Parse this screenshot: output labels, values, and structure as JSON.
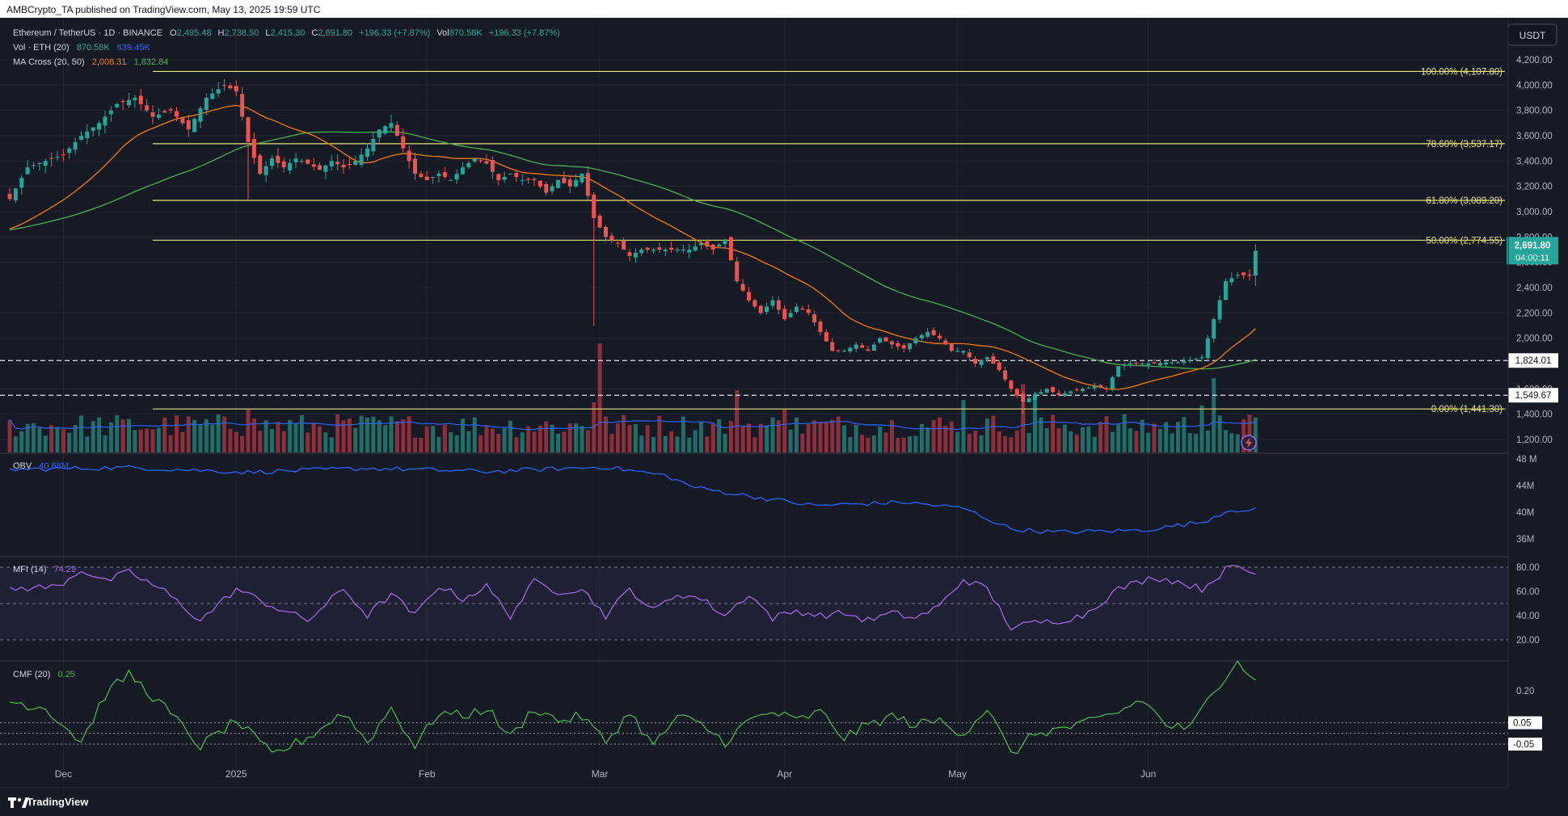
{
  "header": {
    "published": "AMBCrypto_TA published on TradingView.com, May 13, 2025 19:59 UTC",
    "symbol": "Ethereum / TetherUS · 1D · BINANCE",
    "o_label": "O",
    "o_value": "2,495.48",
    "h_label": "H",
    "h_value": "2,738.50",
    "l_label": "L",
    "l_value": "2,415.30",
    "c_label": "C",
    "c_value": "2,691.80",
    "change": "+196.33 (+7.87%)",
    "vol_label": "Vol",
    "vol_value": "870.58K",
    "vol_change": "+196.33 (+7.87%)",
    "vol_ind_label": "Vol · ETH (20)",
    "vol_ind_v1": "870.58K",
    "vol_ind_v2": "639.45K",
    "ma_label": "MA Cross (20, 50)",
    "ma_v1": "2,008.31",
    "ma_v2": "1,832.84",
    "currency": "USDT"
  },
  "price_badge": {
    "value": "2,691.80",
    "countdown": "04:00:11"
  },
  "colors": {
    "background": "#161a25",
    "up": "#26a69a",
    "down": "#ef5350",
    "ma20": "#f57c00",
    "ma50": "#4caf50",
    "fib": "#e8e27a",
    "obv": "#2962ff",
    "mfi": "#9c6ade",
    "cmf": "#4caf50",
    "volume_ma": "#2962ff"
  },
  "chart_data": {
    "type": "candlestick",
    "x_ticks": [
      "Dec",
      "2025",
      "Feb",
      "Mar",
      "Apr",
      "May",
      "Jun"
    ],
    "y_ticks": [
      "4,200.00",
      "4,000.00",
      "3,800.00",
      "3,600.00",
      "3,400.00",
      "3,200.00",
      "3,000.00",
      "2,800.00",
      "2,600.00",
      "2,400.00",
      "2,200.00",
      "2,000.00",
      "1,800.00",
      "1,600.00",
      "1,400.00",
      "1,200.00"
    ],
    "y_tick_values": [
      4200,
      4000,
      3800,
      3600,
      3400,
      3200,
      3000,
      2800,
      2600,
      2400,
      2200,
      2000,
      1800,
      1600,
      1400,
      1200
    ],
    "fib_levels": [
      {
        "label": "100.00% (4,107.80)",
        "price": 4107.8
      },
      {
        "label": "78.60% (3,537.17)",
        "price": 3537.17
      },
      {
        "label": "61.80% (3,089.20)",
        "price": 3089.2
      },
      {
        "label": "50.00% (2,774.55)",
        "price": 2774.55
      },
      {
        "label": "0.00% (1,441.30)",
        "price": 1441.3
      }
    ],
    "horizontal_levels": [
      {
        "label": "1,824.01",
        "price": 1824.01
      },
      {
        "label": "1,549.67",
        "price": 1549.67
      }
    ],
    "close_anchors": [
      [
        0,
        3100
      ],
      [
        3,
        3350
      ],
      [
        6,
        3400
      ],
      [
        9,
        3450
      ],
      [
        12,
        3600
      ],
      [
        15,
        3700
      ],
      [
        18,
        3850
      ],
      [
        21,
        3900
      ],
      [
        24,
        3750
      ],
      [
        27,
        3800
      ],
      [
        30,
        3650
      ],
      [
        33,
        3900
      ],
      [
        36,
        4000
      ],
      [
        38,
        3950
      ],
      [
        40,
        3550
      ],
      [
        42,
        3300
      ],
      [
        44,
        3420
      ],
      [
        46,
        3350
      ],
      [
        48,
        3420
      ],
      [
        50,
        3380
      ],
      [
        52,
        3330
      ],
      [
        54,
        3400
      ],
      [
        56,
        3350
      ],
      [
        58,
        3400
      ],
      [
        60,
        3500
      ],
      [
        62,
        3650
      ],
      [
        64,
        3700
      ],
      [
        66,
        3500
      ],
      [
        68,
        3300
      ],
      [
        70,
        3250
      ],
      [
        72,
        3300
      ],
      [
        74,
        3250
      ],
      [
        76,
        3350
      ],
      [
        78,
        3420
      ],
      [
        80,
        3380
      ],
      [
        82,
        3250
      ],
      [
        84,
        3300
      ],
      [
        86,
        3250
      ],
      [
        88,
        3250
      ],
      [
        90,
        3150
      ],
      [
        92,
        3250
      ],
      [
        94,
        3200
      ],
      [
        96,
        3300
      ],
      [
        98,
        2950
      ],
      [
        100,
        2800
      ],
      [
        102,
        2750
      ],
      [
        104,
        2650
      ],
      [
        106,
        2700
      ],
      [
        108,
        2700
      ],
      [
        110,
        2700
      ],
      [
        112,
        2700
      ],
      [
        114,
        2700
      ],
      [
        116,
        2750
      ],
      [
        118,
        2700
      ],
      [
        120,
        2780
      ],
      [
        122,
        2450
      ],
      [
        124,
        2300
      ],
      [
        126,
        2200
      ],
      [
        128,
        2300
      ],
      [
        130,
        2150
      ],
      [
        132,
        2250
      ],
      [
        134,
        2200
      ],
      [
        136,
        2050
      ],
      [
        138,
        1900
      ],
      [
        140,
        1900
      ],
      [
        142,
        1950
      ],
      [
        144,
        1900
      ],
      [
        146,
        2000
      ],
      [
        148,
        1950
      ],
      [
        150,
        1920
      ],
      [
        152,
        2000
      ],
      [
        154,
        2050
      ],
      [
        156,
        2000
      ],
      [
        158,
        1900
      ],
      [
        160,
        1900
      ],
      [
        162,
        1800
      ],
      [
        164,
        1850
      ],
      [
        166,
        1750
      ],
      [
        168,
        1600
      ],
      [
        170,
        1500
      ],
      [
        172,
        1550
      ],
      [
        174,
        1600
      ],
      [
        176,
        1550
      ],
      [
        178,
        1580
      ],
      [
        180,
        1600
      ],
      [
        182,
        1620
      ],
      [
        184,
        1600
      ],
      [
        186,
        1780
      ],
      [
        188,
        1800
      ],
      [
        190,
        1800
      ],
      [
        192,
        1800
      ],
      [
        194,
        1810
      ],
      [
        196,
        1810
      ],
      [
        198,
        1830
      ],
      [
        200,
        1850
      ],
      [
        202,
        2150
      ],
      [
        204,
        2450
      ],
      [
        206,
        2500
      ],
      [
        208,
        2495
      ],
      [
        209,
        2691.8
      ]
    ],
    "obv_axis": [
      "48 M",
      "44M",
      "40M",
      "36M"
    ],
    "obv_axis_values": [
      48,
      44,
      40,
      36
    ],
    "obv_label": "OBV",
    "obv_value": "40.68M",
    "obv_anchors": [
      [
        0,
        46.4
      ],
      [
        20,
        46.7
      ],
      [
        40,
        46.0
      ],
      [
        60,
        46.6
      ],
      [
        80,
        46.1
      ],
      [
        100,
        46.8
      ],
      [
        110,
        45.5
      ],
      [
        115,
        43.7
      ],
      [
        125,
        42.3
      ],
      [
        135,
        41.0
      ],
      [
        150,
        41.5
      ],
      [
        160,
        40.6
      ],
      [
        168,
        37.5
      ],
      [
        175,
        37.0
      ],
      [
        190,
        37.3
      ],
      [
        200,
        38.5
      ],
      [
        205,
        40.5
      ],
      [
        208,
        39.9
      ],
      [
        209,
        40.68
      ]
    ],
    "mfi_axis": [
      "80.00",
      "60.00",
      "40.00",
      "20.00"
    ],
    "mfi_axis_values": [
      80,
      60,
      40,
      20
    ],
    "mfi_label": "MFI (14)",
    "mfi_value": "74.29",
    "mfi_anchors": [
      [
        0,
        62
      ],
      [
        8,
        64
      ],
      [
        12,
        78
      ],
      [
        16,
        68
      ],
      [
        20,
        76
      ],
      [
        26,
        60
      ],
      [
        32,
        36
      ],
      [
        38,
        62
      ],
      [
        44,
        48
      ],
      [
        50,
        36
      ],
      [
        56,
        62
      ],
      [
        60,
        40
      ],
      [
        64,
        58
      ],
      [
        68,
        40
      ],
      [
        72,
        65
      ],
      [
        76,
        54
      ],
      [
        80,
        64
      ],
      [
        84,
        40
      ],
      [
        88,
        68
      ],
      [
        92,
        60
      ],
      [
        96,
        62
      ],
      [
        100,
        40
      ],
      [
        104,
        62
      ],
      [
        108,
        44
      ],
      [
        112,
        58
      ],
      [
        116,
        54
      ],
      [
        120,
        40
      ],
      [
        124,
        58
      ],
      [
        128,
        38
      ],
      [
        132,
        44
      ],
      [
        136,
        40
      ],
      [
        140,
        42
      ],
      [
        144,
        36
      ],
      [
        148,
        42
      ],
      [
        152,
        38
      ],
      [
        156,
        48
      ],
      [
        160,
        70
      ],
      [
        164,
        62
      ],
      [
        168,
        30
      ],
      [
        172,
        34
      ],
      [
        176,
        36
      ],
      [
        180,
        40
      ],
      [
        186,
        62
      ],
      [
        192,
        72
      ],
      [
        196,
        68
      ],
      [
        200,
        62
      ],
      [
        204,
        78
      ],
      [
        206,
        80
      ],
      [
        209,
        74.29
      ]
    ],
    "cmf_axis": [
      "0.20",
      "0.05",
      "-0.05"
    ],
    "cmf_axis_values": [
      0.2,
      0.05,
      -0.05
    ],
    "cmf_label": "CMF (20)",
    "cmf_value": "0.25",
    "cmf_anchors": [
      [
        0,
        0.15
      ],
      [
        6,
        0.12
      ],
      [
        12,
        -0.04
      ],
      [
        16,
        0.18
      ],
      [
        20,
        0.28
      ],
      [
        26,
        0.12
      ],
      [
        32,
        -0.06
      ],
      [
        38,
        0.06
      ],
      [
        44,
        -0.1
      ],
      [
        50,
        -0.02
      ],
      [
        56,
        0.1
      ],
      [
        60,
        -0.04
      ],
      [
        64,
        0.12
      ],
      [
        68,
        -0.06
      ],
      [
        72,
        0.1
      ],
      [
        76,
        0.08
      ],
      [
        80,
        0.12
      ],
      [
        84,
        -0.02
      ],
      [
        88,
        0.12
      ],
      [
        92,
        0.06
      ],
      [
        96,
        0.08
      ],
      [
        100,
        -0.04
      ],
      [
        104,
        0.1
      ],
      [
        108,
        -0.06
      ],
      [
        112,
        0.08
      ],
      [
        116,
        0.04
      ],
      [
        120,
        -0.04
      ],
      [
        124,
        0.06
      ],
      [
        128,
        0.1
      ],
      [
        132,
        0.06
      ],
      [
        136,
        0.1
      ],
      [
        140,
        -0.02
      ],
      [
        144,
        0.04
      ],
      [
        148,
        0.08
      ],
      [
        152,
        0.04
      ],
      [
        156,
        0.06
      ],
      [
        160,
        0.0
      ],
      [
        164,
        0.12
      ],
      [
        168,
        -0.1
      ],
      [
        172,
        0.0
      ],
      [
        176,
        0.02
      ],
      [
        180,
        0.04
      ],
      [
        186,
        0.1
      ],
      [
        190,
        0.16
      ],
      [
        194,
        0.04
      ],
      [
        198,
        0.02
      ],
      [
        202,
        0.2
      ],
      [
        206,
        0.35
      ],
      [
        208,
        0.26
      ],
      [
        209,
        0.25
      ]
    ]
  },
  "footer": {
    "brand": "TradingView"
  }
}
